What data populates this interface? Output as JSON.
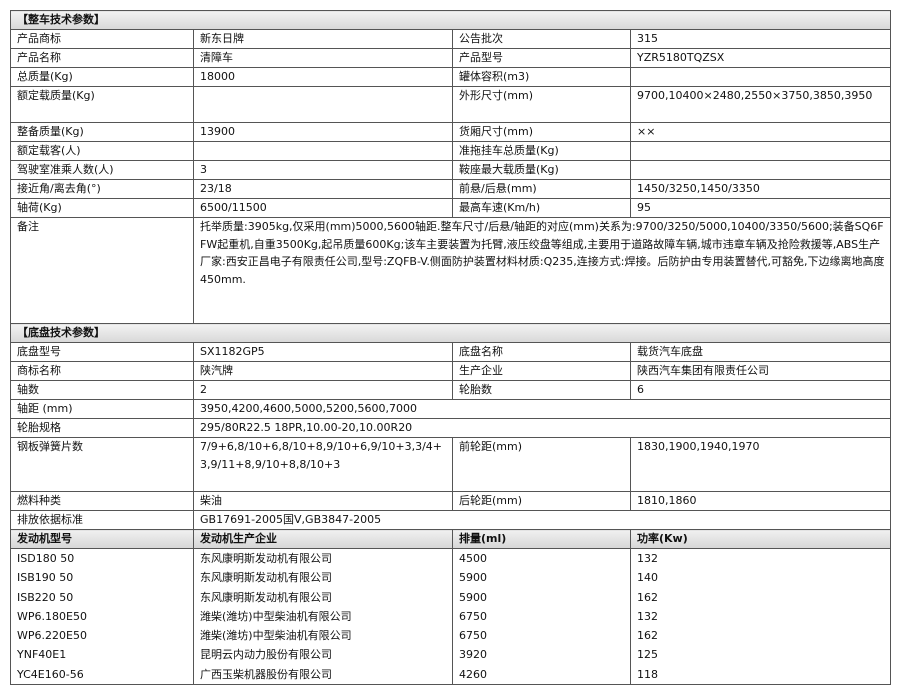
{
  "vehicle_section": {
    "title": "【整车技术参数】",
    "rows": [
      [
        "产品商标",
        "新东日牌",
        "公告批次",
        "315"
      ],
      [
        "产品名称",
        "清障车",
        "产品型号",
        "YZR5180TQZSX"
      ],
      [
        "总质量(Kg)",
        "18000",
        "罐体容积(m3)",
        ""
      ],
      [
        "额定载质量(Kg)",
        "",
        "外形尺寸(mm)",
        "9700,10400×2480,2550×3750,3850,3950"
      ],
      [
        "整备质量(Kg)",
        "13900",
        "货厢尺寸(mm)",
        "××"
      ],
      [
        "额定载客(人)",
        "",
        "准拖挂车总质量(Kg)",
        ""
      ],
      [
        "驾驶室准乘人数(人)",
        "3",
        "鞍座最大载质量(Kg)",
        ""
      ],
      [
        "接近角/离去角(°)",
        "23/18",
        "前悬/后悬(mm)",
        "1450/3250,1450/3350"
      ],
      [
        "轴荷(Kg)",
        "6500/11500",
        "最高车速(Km/h)",
        "95"
      ]
    ],
    "remarks_label": "备注",
    "remarks": "托举质量:3905kg,仅采用(mm)5000,5600轴距.整车尺寸/后悬/轴距的对应(mm)关系为:9700/3250/5000,10400/3350/5600;装备SQ6FFW起重机,自重3500Kg,起吊质量600Kg;该车主要装置为托臂,液压绞盘等组成,主要用于道路故障车辆,城市违章车辆及抢险救援等,ABS生产厂家:西安正昌电子有限责任公司,型号:ZQFB-V.侧面防护装置材料材质:Q235,连接方式:焊接。后防护由专用装置替代,可豁免,下边缘离地高度450mm."
  },
  "chassis_section": {
    "title": "【底盘技术参数】",
    "rows": [
      [
        "底盘型号",
        "SX1182GP5",
        "底盘名称",
        "载货汽车底盘"
      ],
      [
        "商标名称",
        "陕汽牌",
        "生产企业",
        "陕西汽车集团有限责任公司"
      ],
      [
        "轴数",
        "2",
        "轮胎数",
        "6"
      ]
    ],
    "wheelbase": [
      "轴距 (mm)",
      "3950,4200,4600,5000,5200,5600,7000"
    ],
    "tire": [
      "轮胎规格",
      "295/80R22.5 18PR,10.00-20,10.00R20"
    ],
    "spring": [
      "钢板弹簧片数",
      "7/9+6,8/10+6,8/10+8,9/10+6,9/10+3,3/4+3,9/11+8,9/10+8,8/10+3",
      "前轮距(mm)",
      "1830,1900,1940,1970"
    ],
    "fuel": [
      "燃料种类",
      "柴油",
      "后轮距(mm)",
      "1810,1860"
    ],
    "emission": [
      "排放依据标准",
      "GB17691-2005国V,GB3847-2005"
    ]
  },
  "engines": {
    "headers": [
      "发动机型号",
      "发动机生产企业",
      "排量(ml)",
      "功率(Kw)"
    ],
    "rows": [
      [
        "ISD180 50",
        "东风康明斯发动机有限公司",
        "4500",
        "132"
      ],
      [
        "ISB190 50",
        "东风康明斯发动机有限公司",
        "5900",
        "140"
      ],
      [
        "ISB220 50",
        "东风康明斯发动机有限公司",
        "5900",
        "162"
      ],
      [
        "WP6.180E50",
        "潍柴(潍坊)中型柴油机有限公司",
        "6750",
        "132"
      ],
      [
        "WP6.220E50",
        "潍柴(潍坊)中型柴油机有限公司",
        "6750",
        "162"
      ],
      [
        "YNF40E1",
        "昆明云内动力股份有限公司",
        "3920",
        "125"
      ],
      [
        "YC4E160-56",
        "广西玉柴机器股份有限公司",
        "4260",
        "118"
      ]
    ]
  }
}
